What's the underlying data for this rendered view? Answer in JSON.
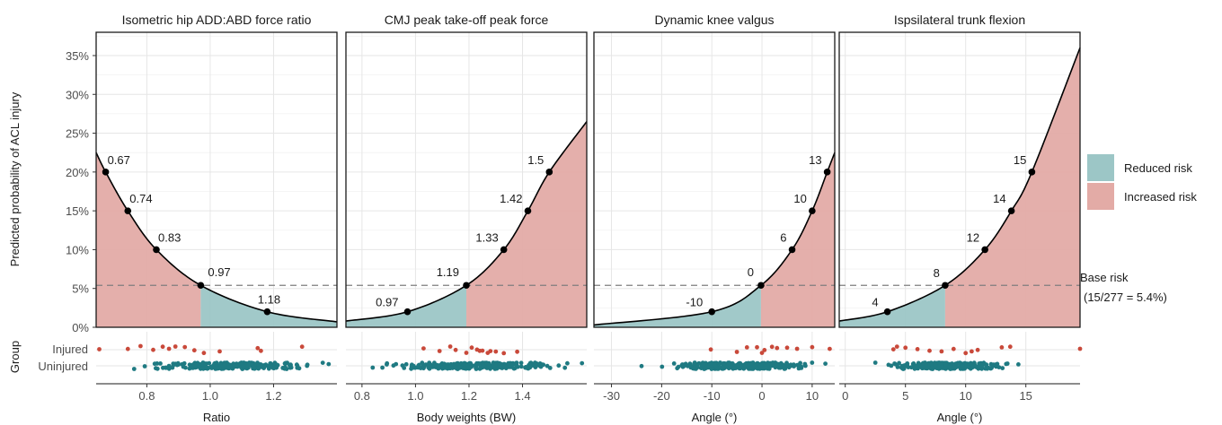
{
  "chart_data": {
    "type": "area",
    "ylabel": "Predicted probability of ACL injury",
    "y_ticks": [
      "0%",
      "5%",
      "10%",
      "15%",
      "20%",
      "25%",
      "30%",
      "35%"
    ],
    "y_tick_values": [
      0,
      5,
      10,
      15,
      20,
      25,
      30,
      35
    ],
    "ylim": [
      0,
      38
    ],
    "base_risk": 5.4,
    "base_risk_label": "Base risk",
    "base_risk_note": "(15/277 = 5.4%)",
    "group_label": "Group",
    "group_levels": [
      "Injured",
      "Uninjured"
    ],
    "legend": [
      {
        "name": "Reduced risk",
        "color": "#9cc6c6"
      },
      {
        "name": "Increased risk",
        "color": "#e3aba6"
      }
    ],
    "colors": {
      "reduced": "#9cc6c6",
      "increased": "#e3aba6",
      "curve": "#000000",
      "injured": "#c9493a",
      "uninjured": "#1f7a82"
    },
    "panels": [
      {
        "title": "Isometric hip ADD:ABD force ratio",
        "xlabel": "Ratio",
        "xlim": [
          0.64,
          1.4
        ],
        "x_ticks": [
          "0.8",
          "1.0",
          "1.2"
        ],
        "x_tick_values": [
          0.8,
          1.0,
          1.2
        ],
        "direction": "decreasing",
        "threshold_x": 0.97,
        "x": [
          0.64,
          0.67,
          0.74,
          0.83,
          0.97,
          1.18,
          1.4
        ],
        "y": [
          22.5,
          20,
          15,
          10,
          5.4,
          2,
          0.7
        ],
        "labeled_points": [
          {
            "x": 0.67,
            "y": 20,
            "label": "0.67"
          },
          {
            "x": 0.74,
            "y": 15,
            "label": "0.74"
          },
          {
            "x": 0.83,
            "y": 10,
            "label": "0.83"
          },
          {
            "x": 0.97,
            "y": 5.4,
            "label": "0.97"
          },
          {
            "x": 1.18,
            "y": 2,
            "label": "1.18"
          }
        ],
        "injured_x": [
          0.65,
          0.74,
          0.78,
          0.82,
          0.85,
          0.87,
          0.89,
          0.92,
          0.95,
          0.98,
          1.03,
          1.15,
          1.16,
          1.29
        ],
        "uninjured_range": [
          0.76,
          1.38
        ],
        "uninjured_count": 262
      },
      {
        "title": "CMJ peak take-off peak force",
        "xlabel": "Body weights (BW)",
        "xlim": [
          0.74,
          1.64
        ],
        "x_ticks": [
          "0.8",
          "1.0",
          "1.2",
          "1.4"
        ],
        "x_tick_values": [
          0.8,
          1.0,
          1.2,
          1.4
        ],
        "direction": "increasing",
        "threshold_x": 1.19,
        "x": [
          0.74,
          0.97,
          1.19,
          1.33,
          1.42,
          1.5,
          1.64
        ],
        "y": [
          0.8,
          2,
          5.4,
          10,
          15,
          20,
          26.5
        ],
        "labeled_points": [
          {
            "x": 0.97,
            "y": 2,
            "label": "0.97"
          },
          {
            "x": 1.19,
            "y": 5.4,
            "label": "1.19"
          },
          {
            "x": 1.33,
            "y": 10,
            "label": "1.33"
          },
          {
            "x": 1.42,
            "y": 15,
            "label": "1.42"
          },
          {
            "x": 1.5,
            "y": 20,
            "label": "1.5"
          }
        ],
        "injured_x": [
          1.03,
          1.09,
          1.13,
          1.15,
          1.19,
          1.21,
          1.23,
          1.24,
          1.25,
          1.27,
          1.28,
          1.3,
          1.33,
          1.38
        ],
        "uninjured_range": [
          0.84,
          1.63
        ],
        "uninjured_count": 262
      },
      {
        "title": "Dynamic knee valgus",
        "xlabel": "Angle (°)",
        "xlim": [
          -33.5,
          14.5
        ],
        "x_ticks": [
          "-30",
          "-20",
          "-10",
          "0",
          "10"
        ],
        "x_tick_values": [
          -30,
          -20,
          -10,
          0,
          10
        ],
        "direction": "increasing",
        "threshold_x": -0.2,
        "x": [
          -33.5,
          -10,
          -0.2,
          6,
          10,
          13,
          14.5
        ],
        "y": [
          0.3,
          2,
          5.4,
          10,
          15,
          20,
          22.5
        ],
        "labeled_points": [
          {
            "x": -10,
            "y": 2,
            "label": "-10"
          },
          {
            "x": -0.2,
            "y": 5.4,
            "label": "0"
          },
          {
            "x": 6,
            "y": 10,
            "label": "6"
          },
          {
            "x": 10,
            "y": 15,
            "label": "10"
          },
          {
            "x": 13,
            "y": 20,
            "label": "13"
          }
        ],
        "injured_x": [
          -10.2,
          -5,
          -3,
          -1,
          0,
          0.5,
          2,
          3,
          5,
          7,
          10,
          13.5
        ],
        "uninjured_range": [
          -24,
          13
        ],
        "uninjured_count": 262
      },
      {
        "title": "Ispsilateral trunk flexion",
        "xlabel": "Angle (°)",
        "xlim": [
          -0.5,
          19.5
        ],
        "x_ticks": [
          "0",
          "5",
          "10",
          "15"
        ],
        "x_tick_values": [
          0,
          5,
          10,
          15
        ],
        "direction": "increasing",
        "threshold_x": 8.3,
        "x": [
          -0.5,
          3.5,
          8.3,
          11.6,
          13.8,
          15.5,
          19.5
        ],
        "y": [
          0.8,
          2,
          5.4,
          10,
          15,
          20,
          36
        ],
        "labeled_points": [
          {
            "x": 3.5,
            "y": 2,
            "label": "4"
          },
          {
            "x": 8.3,
            "y": 5.4,
            "label": "8"
          },
          {
            "x": 11.6,
            "y": 10,
            "label": "12"
          },
          {
            "x": 13.8,
            "y": 15,
            "label": "14"
          },
          {
            "x": 15.5,
            "y": 20,
            "label": "15"
          }
        ],
        "injured_x": [
          4,
          4.3,
          5,
          6,
          7,
          8,
          9,
          10,
          10.5,
          11,
          13,
          13.7,
          19.5
        ],
        "uninjured_range": [
          2.5,
          14.5
        ],
        "uninjured_count": 262
      }
    ]
  }
}
